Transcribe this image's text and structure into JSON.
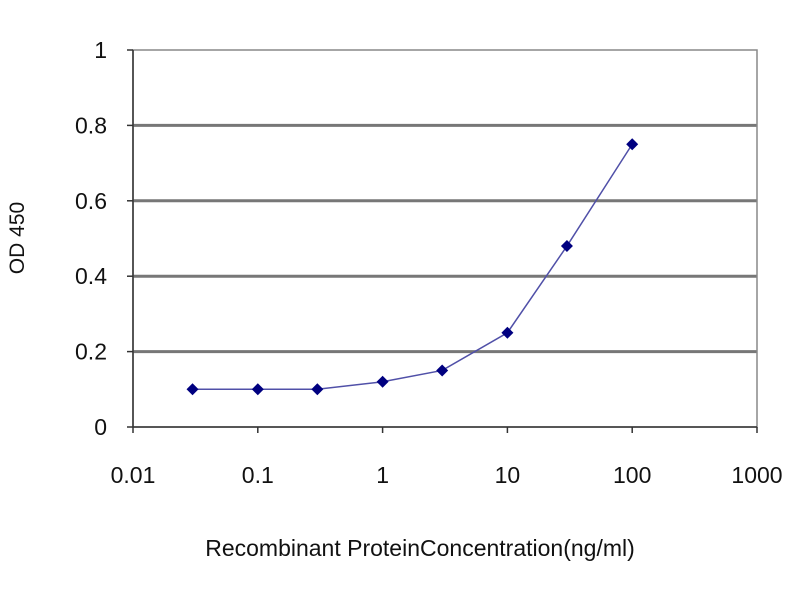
{
  "chart_data": {
    "type": "line",
    "title": "",
    "xlabel": "Recombinant ProteinConcentration(ng/ml)",
    "ylabel": "OD 450",
    "x_scale": "log",
    "xlim": [
      0.01,
      1000
    ],
    "ylim": [
      0,
      1
    ],
    "x_ticks": [
      "0.01",
      "0.1",
      "1",
      "10",
      "100",
      "1000"
    ],
    "y_ticks": [
      "0",
      "0.2",
      "0.4",
      "0.6",
      "0.8",
      "1"
    ],
    "grid": "horizontal",
    "series": [
      {
        "x": [
          0.03,
          0.1,
          0.3,
          1,
          3,
          10,
          30,
          100
        ],
        "y": [
          0.1,
          0.1,
          0.1,
          0.12,
          0.15,
          0.25,
          0.48,
          0.75
        ],
        "color": "#000080",
        "marker": "diamond"
      }
    ]
  }
}
